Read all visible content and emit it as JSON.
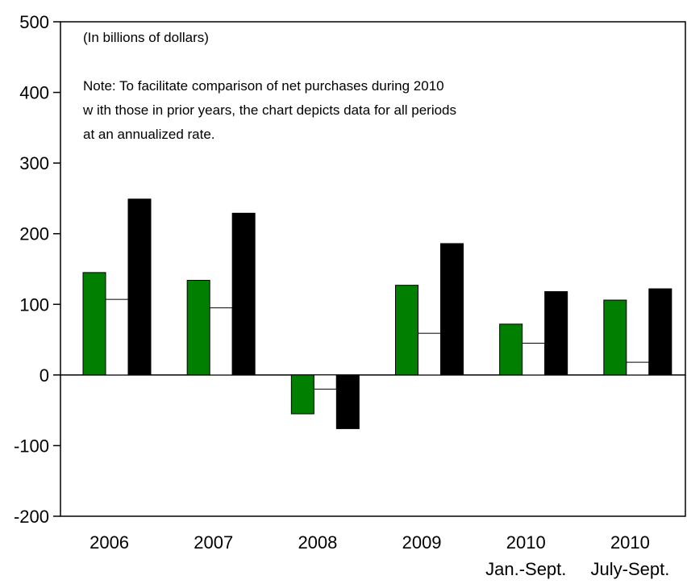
{
  "chart_data": {
    "type": "bar",
    "title": "",
    "xlabel": "",
    "ylabel": "",
    "unit_note": "(In billions of dollars)",
    "note_lines": [
      "Note: To facilitate comparison of net purchases during 2010",
      "w ith those in prior years, the chart depicts data for all periods",
      "at an annualized rate."
    ],
    "categories": [
      "2006",
      "2007",
      "2008",
      "2009",
      "2010",
      "2010"
    ],
    "category_sublabels": [
      "",
      "",
      "",
      "",
      "Jan.-Sept.",
      "July-Sept."
    ],
    "ylim": [
      -200,
      500
    ],
    "yticks": [
      -200,
      -100,
      0,
      100,
      200,
      300,
      400,
      500
    ],
    "grid": false,
    "series": [
      {
        "color": "#007f00",
        "values": [
          145,
          134,
          -55,
          127,
          72,
          106
        ]
      },
      {
        "color": "#ffffff",
        "values": [
          107,
          95,
          -20,
          59,
          45,
          18
        ]
      },
      {
        "color": "#000000",
        "values": [
          249,
          229,
          -76,
          186,
          118,
          122
        ]
      }
    ]
  }
}
